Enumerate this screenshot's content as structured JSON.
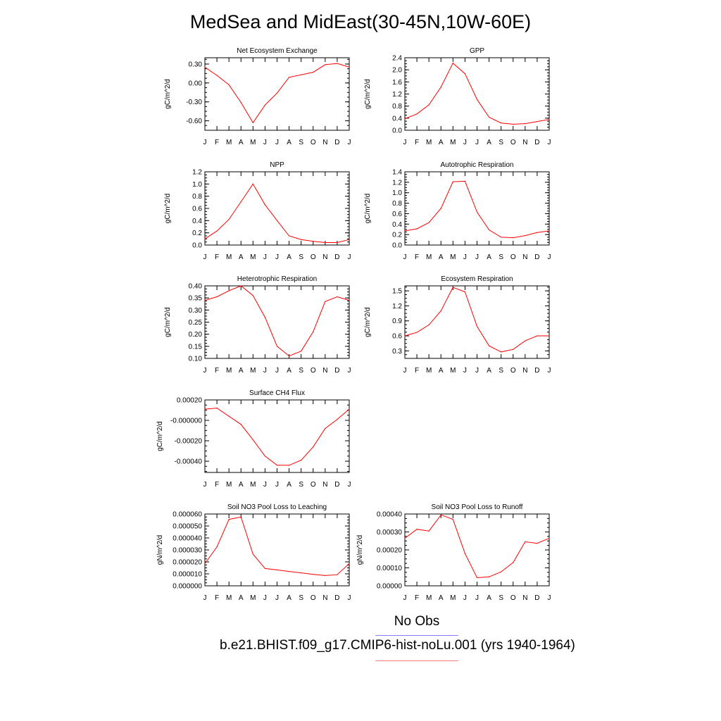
{
  "title": "MedSea and MidEast(30-45N,10W-60E)",
  "months": [
    "J",
    "F",
    "M",
    "A",
    "M",
    "J",
    "J",
    "A",
    "S",
    "O",
    "N",
    "D",
    "J"
  ],
  "series_color": "#ff0000",
  "legend": {
    "obs_label": "No Obs",
    "obs_color": "#8080ff",
    "model_label": "b.e21.BHIST.f09_g17.CMIP6-hist-noLu.001 (yrs 1940-1964)",
    "model_color": "#ff8080"
  },
  "chart_data": [
    {
      "type": "line",
      "title": "Net Ecosystem Exchange",
      "ylabel": "gC/m^2/d",
      "ylim": [
        -0.75,
        0.4
      ],
      "yticks": [
        -0.6,
        -0.3,
        0.0,
        0.3
      ],
      "ytick_labels": [
        "-0.60",
        "-0.30",
        "0.00",
        "0.30"
      ],
      "values": [
        0.25,
        0.12,
        -0.03,
        -0.31,
        -0.63,
        -0.35,
        -0.16,
        0.09,
        0.13,
        0.17,
        0.29,
        0.31,
        0.25
      ]
    },
    {
      "type": "line",
      "title": "GPP",
      "ylabel": "gC/m^2/d",
      "ylim": [
        0,
        2.4
      ],
      "yticks": [
        0,
        0.4,
        0.8,
        1.2,
        1.6,
        2.0,
        2.4
      ],
      "ytick_labels": [
        "0.0",
        "0.4",
        "0.8",
        "1.2",
        "1.6",
        "2.0",
        "2.4"
      ],
      "values": [
        0.38,
        0.54,
        0.84,
        1.43,
        2.22,
        1.87,
        1.02,
        0.43,
        0.24,
        0.2,
        0.22,
        0.29,
        0.36
      ]
    },
    {
      "type": "line",
      "title": "NPP",
      "ylabel": "gC/m^2/d",
      "ylim": [
        0,
        1.2
      ],
      "yticks": [
        0,
        0.2,
        0.4,
        0.6,
        0.8,
        1.0,
        1.2
      ],
      "ytick_labels": [
        "0.0",
        "0.2",
        "0.4",
        "0.6",
        "0.8",
        "1.0",
        "1.2"
      ],
      "values": [
        0.1,
        0.23,
        0.42,
        0.71,
        1.0,
        0.66,
        0.4,
        0.15,
        0.09,
        0.06,
        0.04,
        0.04,
        0.09
      ]
    },
    {
      "type": "line",
      "title": "Autotrophic Respiration",
      "ylabel": "gC/m^2/d",
      "ylim": [
        0,
        1.4
      ],
      "yticks": [
        0,
        0.2,
        0.4,
        0.6,
        0.8,
        1.0,
        1.2,
        1.4
      ],
      "ytick_labels": [
        "0.0",
        "0.2",
        "0.4",
        "0.6",
        "0.8",
        "1.0",
        "1.2",
        "1.4"
      ],
      "values": [
        0.27,
        0.31,
        0.43,
        0.7,
        1.21,
        1.22,
        0.63,
        0.29,
        0.15,
        0.14,
        0.18,
        0.24,
        0.27
      ]
    },
    {
      "type": "line",
      "title": "Heterotrophic Respiration",
      "ylabel": "gC/m^2/d",
      "ylim": [
        0.1,
        0.4
      ],
      "yticks": [
        0.1,
        0.15,
        0.2,
        0.25,
        0.3,
        0.35,
        0.4
      ],
      "ytick_labels": [
        "0.10",
        "0.15",
        "0.20",
        "0.25",
        "0.30",
        "0.35",
        "0.40"
      ],
      "values": [
        0.34,
        0.355,
        0.38,
        0.4,
        0.36,
        0.27,
        0.15,
        0.11,
        0.13,
        0.21,
        0.335,
        0.355,
        0.34
      ]
    },
    {
      "type": "line",
      "title": "Ecosystem Respiration",
      "ylabel": "gC/m^2/d",
      "ylim": [
        0.15,
        1.6
      ],
      "yticks": [
        0.3,
        0.6,
        0.9,
        1.2,
        1.5
      ],
      "ytick_labels": [
        "0.3",
        "0.6",
        "0.9",
        "1.2",
        "1.5"
      ],
      "values": [
        0.6,
        0.67,
        0.82,
        1.1,
        1.57,
        1.48,
        0.79,
        0.4,
        0.28,
        0.33,
        0.5,
        0.6,
        0.6
      ]
    },
    {
      "type": "line",
      "title": "Surface CH4 Flux",
      "ylabel": "gC/m^2/d",
      "ylim": [
        -0.00051,
        0.0002
      ],
      "yticks": [
        -0.0004,
        -0.0002,
        0,
        0.0002
      ],
      "ytick_labels": [
        "-0.00040",
        "-0.00020",
        "-0.000000",
        "0.00020"
      ],
      "values": [
        0.00011,
        0.00012,
        4e-05,
        -4e-05,
        -0.00019,
        -0.00035,
        -0.00044,
        -0.00044,
        -0.00039,
        -0.00026,
        -8e-05,
        1e-05,
        0.00011
      ]
    },
    {
      "type": "line",
      "title": "Soil NO3 Pool Loss to Leaching",
      "ylabel": "gN/m^2/d",
      "ylim": [
        0,
        6e-05
      ],
      "yticks": [
        0,
        1e-05,
        2e-05,
        3e-05,
        4e-05,
        5e-05,
        6e-05
      ],
      "ytick_labels": [
        "0.000000",
        "0.000010",
        "0.000020",
        "0.000030",
        "0.000040",
        "0.000050",
        "0.000060"
      ],
      "values": [
        1.85e-05,
        3.25e-05,
        5.55e-05,
        5.75e-05,
        2.65e-05,
        1.45e-05,
        1.33e-05,
        1.2e-05,
        1.08e-05,
        9.6e-06,
        8.6e-06,
        9.3e-06,
        1.85e-05
      ]
    },
    {
      "type": "line",
      "title": "Soil NO3 Pool Loss to Runoff",
      "ylabel": "gN/m^2/d",
      "ylim": [
        0,
        0.0004
      ],
      "yticks": [
        0,
        0.0001,
        0.0002,
        0.0003,
        0.0004
      ],
      "ytick_labels": [
        "0.00000",
        "0.00010",
        "0.00020",
        "0.00030",
        "0.00040"
      ],
      "values": [
        0.000265,
        0.000315,
        0.000305,
        0.000395,
        0.00037,
        0.00018,
        4.5e-05,
        5e-05,
        7.8e-05,
        0.00013,
        0.000245,
        0.000237,
        0.000265
      ]
    }
  ]
}
